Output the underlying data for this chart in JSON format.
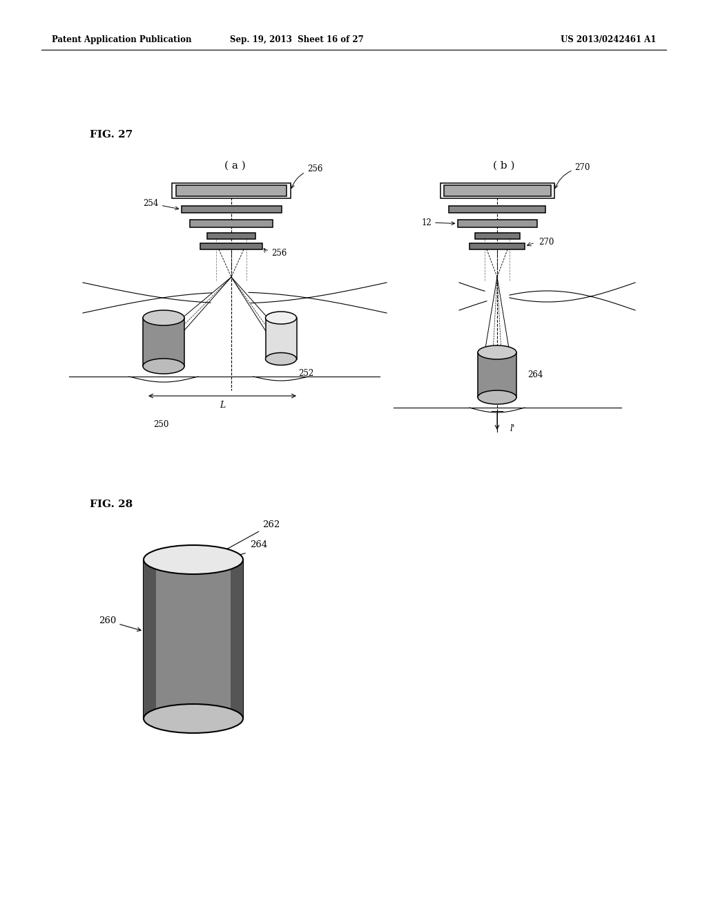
{
  "bg": "#ffffff",
  "header1": "Patent Application Publication",
  "header2": "Sep. 19, 2013  Sheet 16 of 27",
  "header3": "US 2013/0242461 A1",
  "fig27": "FIG. 27",
  "fig28": "FIG. 28",
  "sub_a": "( a )",
  "sub_b": "( b )",
  "lw_thin": 0.7,
  "lw_med": 1.1,
  "lw_thk": 1.5,
  "gray_light": "#c8c8c8",
  "gray_mid": "#999999",
  "gray_dark": "#777777",
  "gray_very_dark": "#555555",
  "hatch_color": "#888888"
}
